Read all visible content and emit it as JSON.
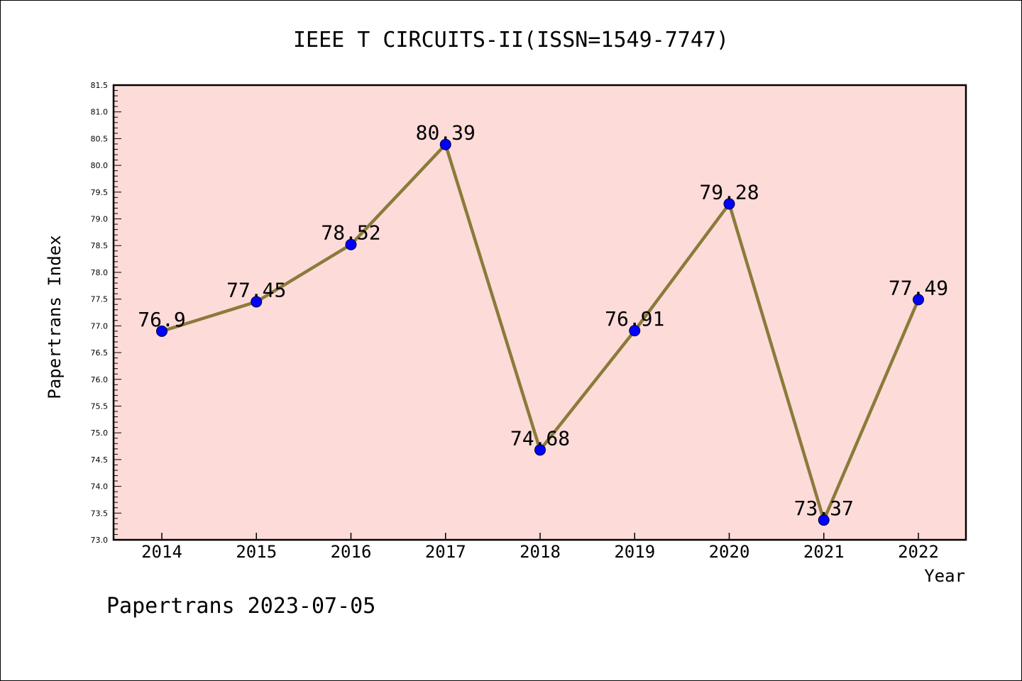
{
  "chart_data": {
    "type": "line",
    "title": "IEEE T CIRCUITS-II(ISSN=1549-7747)",
    "xlabel": "Year",
    "ylabel": "Papertrans Index",
    "footer": "Papertrans 2023-07-05",
    "categories": [
      "2014",
      "2015",
      "2016",
      "2017",
      "2018",
      "2019",
      "2020",
      "2021",
      "2022"
    ],
    "series": [
      {
        "values": [
          76.9,
          77.45,
          78.52,
          80.39,
          74.68,
          76.91,
          79.28,
          73.37,
          77.49
        ],
        "labels": [
          "76.9",
          "77.45",
          "78.52",
          "80.39",
          "74.68",
          "76.91",
          "79.28",
          "73.37",
          "77.49"
        ],
        "line_color": "#8b7b3a",
        "marker_color": "#0000ff"
      }
    ],
    "ylim": [
      73.0,
      81.5
    ],
    "ytick_labels": [
      "73.0",
      "73.5",
      "74.0",
      "74.5",
      "75.0",
      "75.5",
      "76.0",
      "76.5",
      "77.0",
      "77.5",
      "78.0",
      "78.5",
      "79.0",
      "79.5",
      "80.0",
      "80.5",
      "81.0",
      "81.5"
    ],
    "plot_background": "#fddbd9",
    "grid": false,
    "legend": "none"
  }
}
